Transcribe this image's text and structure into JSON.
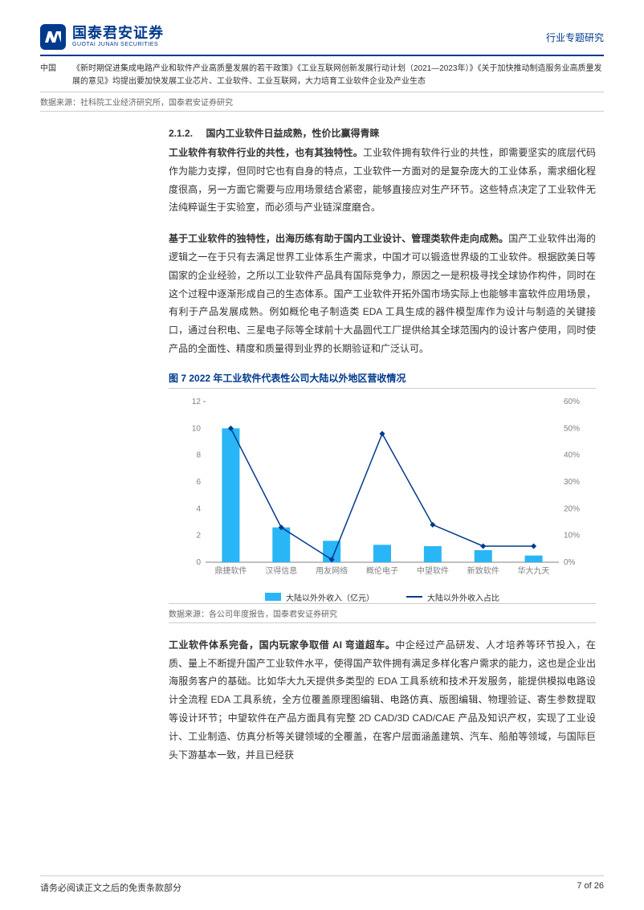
{
  "header": {
    "logo_cn": "国泰君安证券",
    "logo_en": "GUOTAI JUNAN SECURITIES",
    "right_label": "行业专题研究"
  },
  "top_table": {
    "col1": "中国",
    "col2": "《新时期促进集成电路产业和软件产业高质量发展的若干政策》《工业互联网创新发展行动计划（2021—2023年）》《关于加快推动制造服务业高质量发展的意见》均提出要加快发展工业芯片、工业软件、工业互联网，大力培育工业软件企业及产业生态"
  },
  "top_source": "数据来源：社科院工业经济研究所，国泰君安证券研究",
  "section": {
    "num": "2.1.2.",
    "title": "国内工业软件日益成熟，性价比赢得青睐"
  },
  "para1_lead": "工业软件有软件行业的共性，也有其独特性。",
  "para1_body": "工业软件拥有软件行业的共性，即需要坚实的底层代码作为能力支撑，但同时它也有自身的特点，工业软件一方面对的是复杂庞大的工业体系，需求细化程度很高，另一方面它需要与应用场景结合紧密，能够直接应对生产环节。这些特点决定了工业软件无法纯粹诞生于实验室，而必须与产业链深度磨合。",
  "para2_lead": "基于工业软件的独特性，出海历练有助于国内工业设计、管理类软件走向成熟。",
  "para2_body": "国产工业软件出海的逻辑之一在于只有去满足世界工业体系生产需求，中国才可以锻造世界级的工业软件。根据欧美日等国家的企业经验，之所以工业软件产品具有国际竞争力，原因之一是积极寻找全球协作构件，同时在这个过程中逐渐形成自己的生态体系。国产工业软件开拓外国市场实际上也能够丰富软件应用场景，有利于产品发展成熟。例如概伦电子制造类 EDA 工具生成的器件模型库作为设计与制造的关键接口，通过台积电、三星电子际等全球前十大晶圆代工厂提供给其全球范围内的设计客户使用，同时使产品的全面性、精度和质量得到业界的长期验证和广泛认可。",
  "figure": {
    "title": "图 7 2022 年工业软件代表性公司大陆以外地区营收情况",
    "source": "数据来源：各公司年度报告，国泰君安证券研究",
    "categories": [
      "鼎捷软件",
      "汉得信息",
      "用友网络",
      "概伦电子",
      "中望软件",
      "新致软件",
      "华大九天"
    ],
    "bar_values": [
      10.0,
      2.6,
      1.6,
      1.3,
      1.2,
      0.9,
      0.5
    ],
    "line_values": [
      50,
      13,
      1,
      48,
      14,
      6,
      6
    ],
    "left_axis": {
      "min": 0,
      "max": 12,
      "step": 2,
      "label_suffix": ""
    },
    "right_axis": {
      "min": 0,
      "max": 60,
      "step": 10,
      "label_suffix": "%"
    },
    "bar_color": "#29b6f6",
    "line_color": "#003a8c",
    "grid_color": "#e0e0e0",
    "text_color": "#808080",
    "legend_bar": "大陆以外外收入（亿元）",
    "legend_line": "大陆以外外收入占比"
  },
  "para3_lead": "工业软件体系完备，国内玩家争取借 AI 弯道超车。",
  "para3_body": "中企经过产品研发、人才培养等环节投入，在质、量上不断提升国产工业软件水平，使得国产软件拥有满足多样化客户需求的能力，这也是企业出海服务客户的基础。比如华大九天提供多类型的 EDA 工具系统和技术开发服务，能提供模拟电路设计全流程 EDA 工具系统，全方位覆盖原理图编辑、电路仿真、版图编辑、物理验证、寄生参数提取等设计环节；中望软件在产品方面具有完整 2D CAD/3D CAD/CAE 产品及知识产权，实现了工业设计、工业制造、仿真分析等关键领域的全覆盖，在客户层面涵盖建筑、汽车、船舶等领域，与国际巨头下游基本一致，并且已经获",
  "footer": {
    "left": "请务必阅读正文之后的免责条款部分",
    "right": "7 of 26"
  }
}
